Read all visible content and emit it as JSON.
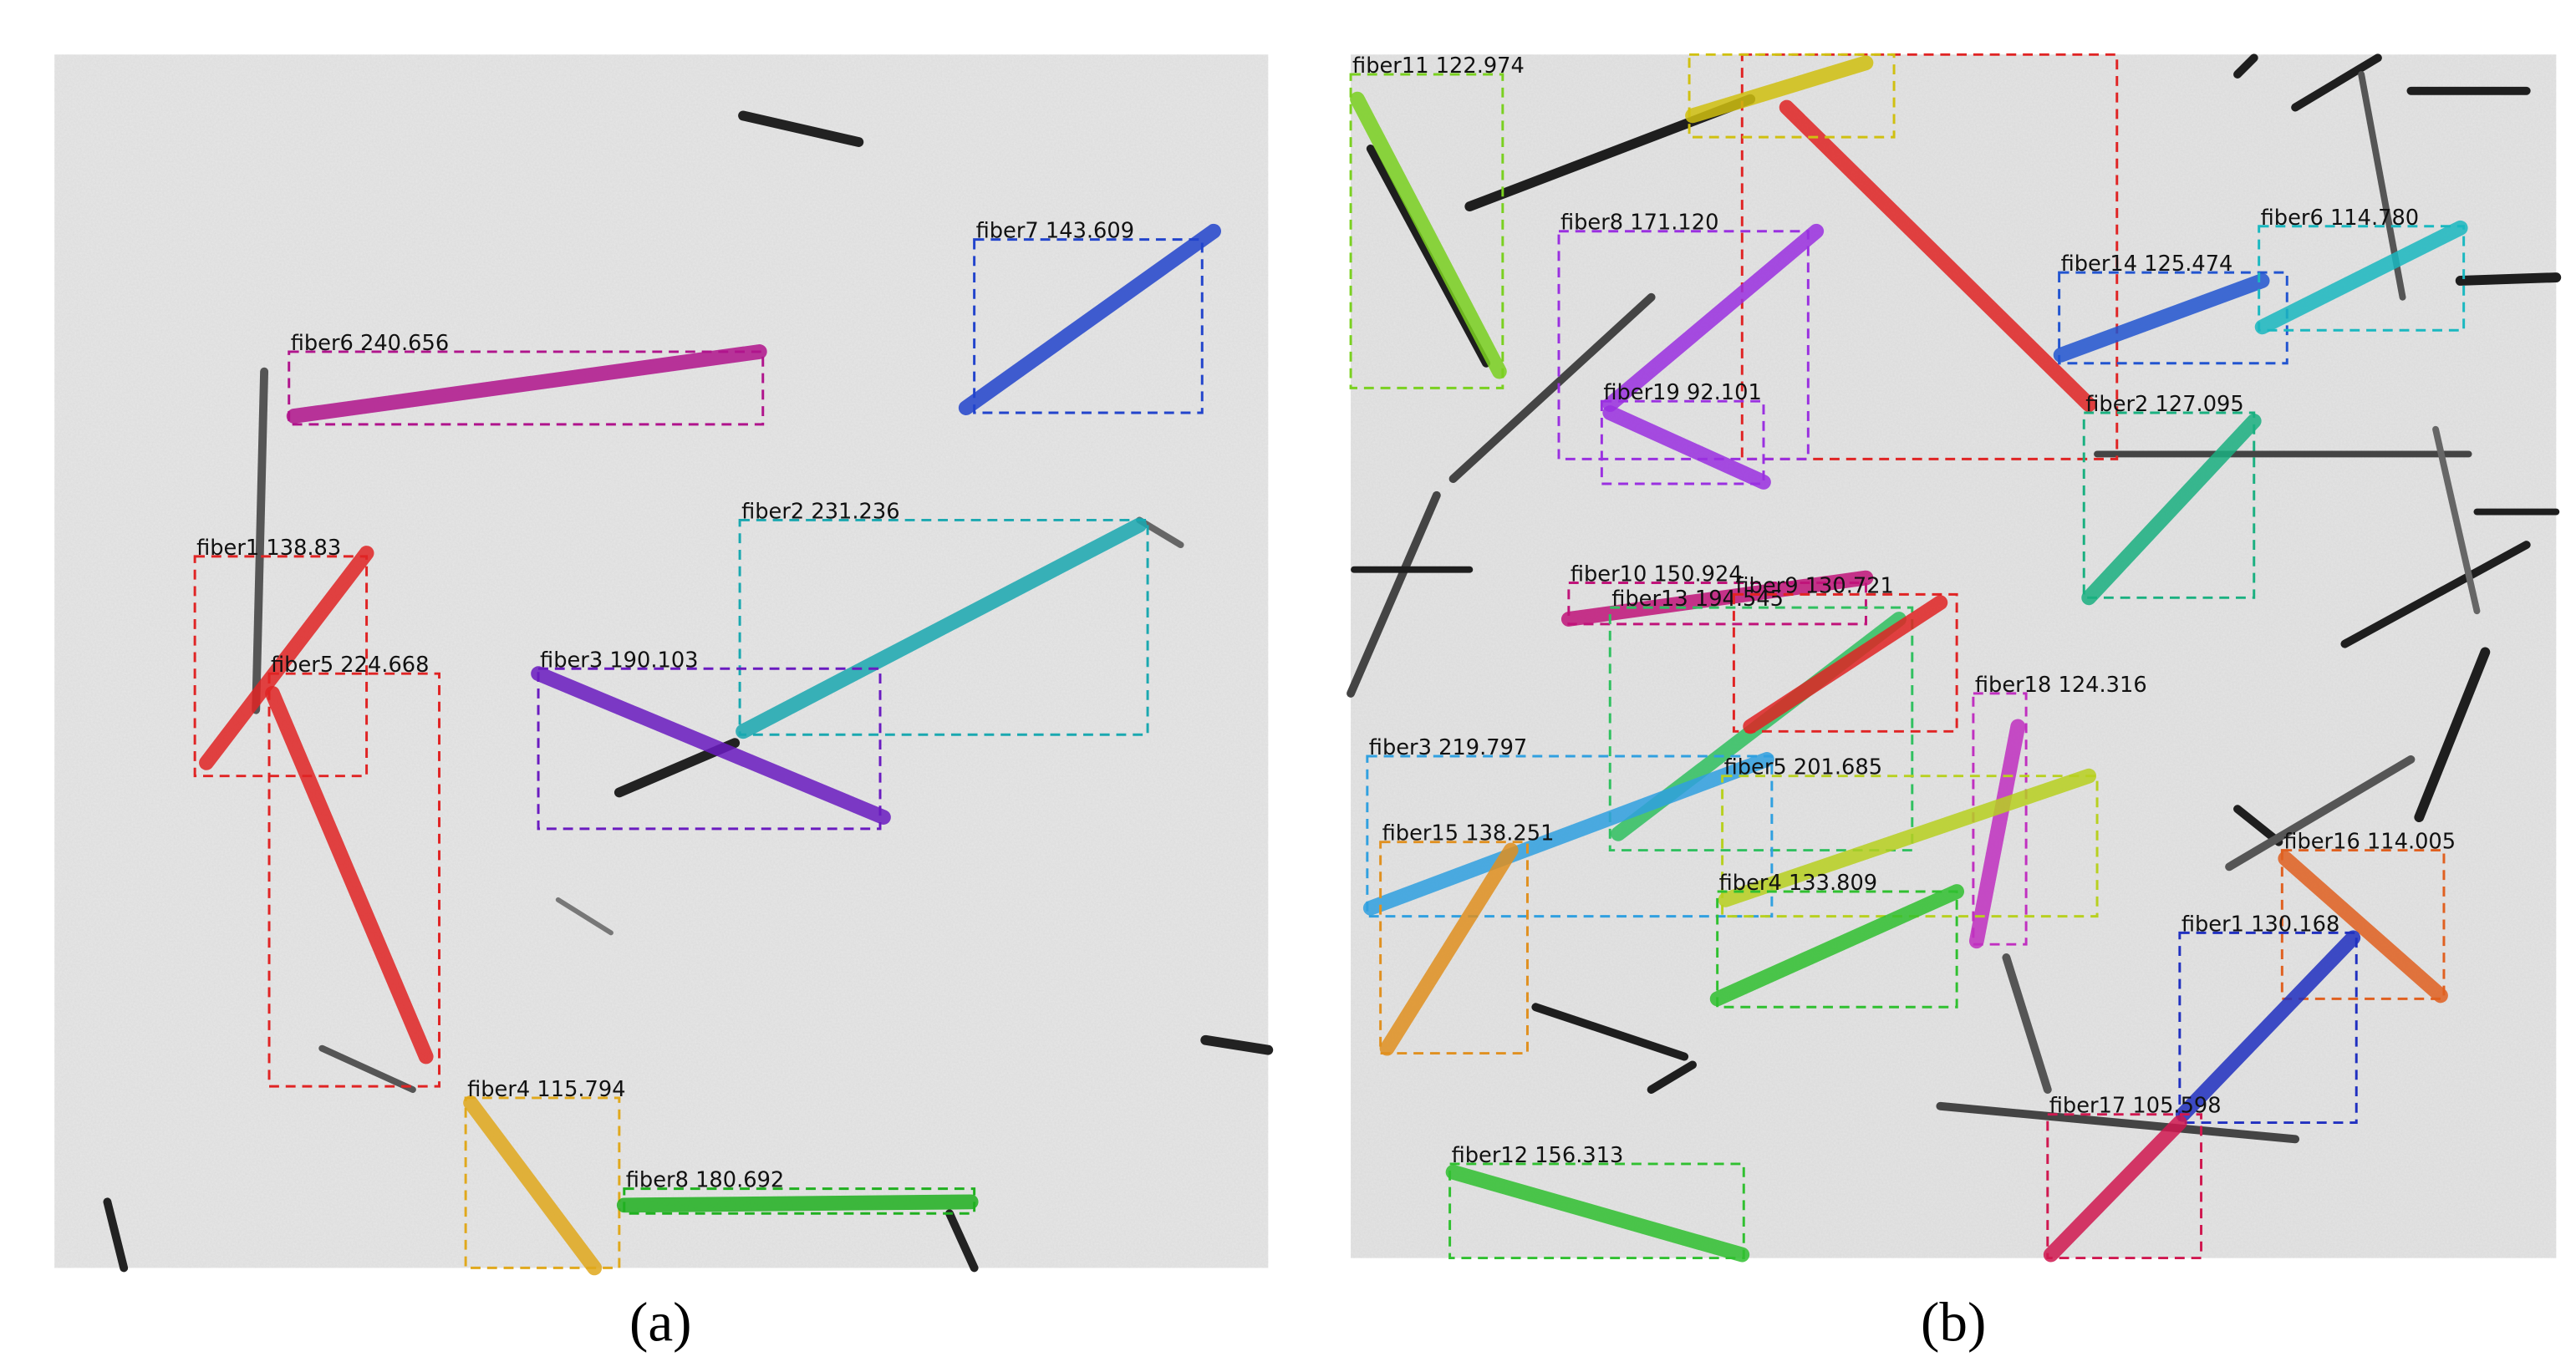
{
  "panels": [
    {
      "caption": "(a)",
      "fibers": [
        {
          "label": "fiber7 143.609"
        },
        {
          "label": "fiber6 240.656"
        },
        {
          "label": "fiber1 138.83"
        },
        {
          "label": "fiber5 224.668"
        },
        {
          "label": "fiber2 231.236"
        },
        {
          "label": "fiber3 190.103"
        },
        {
          "label": "fiber4 115.794"
        },
        {
          "label": "fiber8 180.692"
        }
      ]
    },
    {
      "caption": "(b)",
      "fibers": [
        {
          "label": "fiber11 122.974"
        },
        {
          "label": "fiber8 171.120"
        },
        {
          "label": "fiber19 92.101"
        },
        {
          "label": "fiber14 125.474"
        },
        {
          "label": "fiber6 114.780"
        },
        {
          "label": "fiber2 127.095"
        },
        {
          "label": "fiber10 150.924"
        },
        {
          "label": "fiber13 194.545"
        },
        {
          "label": "fiber9 130.721"
        },
        {
          "label": "fiber18 124.316"
        },
        {
          "label": "fiber3 219.797"
        },
        {
          "label": "fiber5 201.685"
        },
        {
          "label": "fiber15 138.251"
        },
        {
          "label": "fiber4 133.809"
        },
        {
          "label": "fiber16 114.005"
        },
        {
          "label": "fiber1 130.168"
        },
        {
          "label": "fiber17 105.598"
        },
        {
          "label": "fiber12 156.313"
        }
      ]
    }
  ]
}
